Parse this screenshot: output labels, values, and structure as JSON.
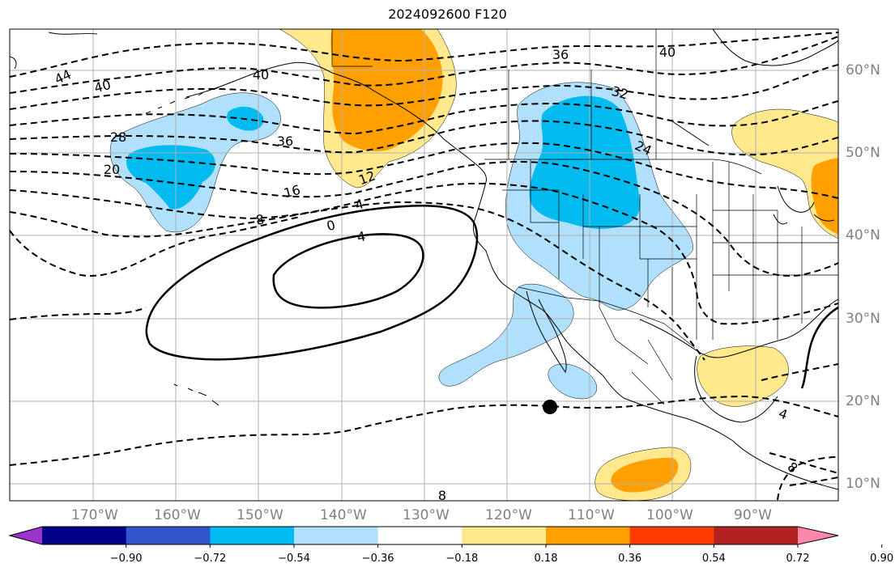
{
  "title": "2024092600 F120",
  "colors": {
    "ocean": "#ffffff",
    "grid": "#b0b0b0",
    "coast": "#000000",
    "contour": "#000000",
    "axis_label": "#808080"
  },
  "lon_labels": [
    "170°W",
    "160°W",
    "150°W",
    "140°W",
    "130°W",
    "120°W",
    "110°W",
    "100°W",
    "90°W"
  ],
  "lat_labels": [
    "60°N",
    "50°N",
    "40°N",
    "30°N",
    "20°N",
    "10°N"
  ],
  "contour_labels": [
    "44",
    "40",
    "40",
    "36",
    "36",
    "40",
    "32",
    "28",
    "24",
    "20",
    "16",
    "12",
    "8",
    "4",
    "0",
    "4",
    "4",
    "8",
    "8"
  ],
  "marker": "filled-circle",
  "colorbar": {
    "ticks": [
      "−0.90",
      "−0.72",
      "−0.54",
      "−0.36",
      "−0.18",
      "0.18",
      "0.36",
      "0.54",
      "0.72",
      "0.90"
    ],
    "colors": [
      "#9933cc",
      "#000088",
      "#3355cc",
      "#00bbf0",
      "#b0e0fb",
      "#ffffff",
      "#ffe98c",
      "#ffa000",
      "#ff3d00",
      "#b22222",
      "#ff88aa"
    ]
  },
  "anomaly_areas": [
    {
      "name": "aleutian-west-negative",
      "level": "−0.36"
    },
    {
      "name": "gulf-alaska-positive",
      "level": "0.36"
    },
    {
      "name": "interior-west-negative",
      "level": "−0.36"
    },
    {
      "name": "baja-negative",
      "level": "−0.18"
    },
    {
      "name": "gulf-mexico-positive",
      "level": "0.18"
    },
    {
      "name": "great-lakes-positive",
      "level": "0.36"
    },
    {
      "name": "east-pacific-south-positive",
      "level": "0.36"
    }
  ]
}
